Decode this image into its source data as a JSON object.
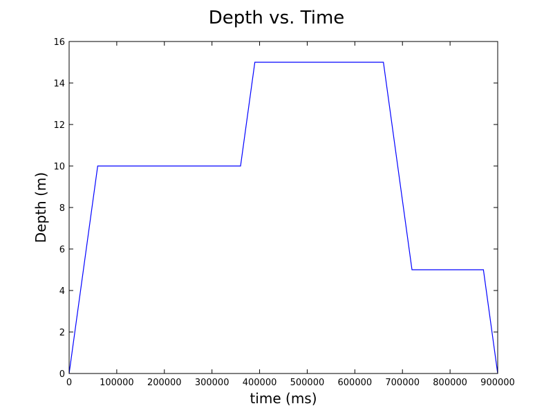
{
  "chart_data": {
    "type": "line",
    "title": "Depth vs. Time",
    "xlabel": "time (ms)",
    "ylabel": "Depth (m)",
    "xlim": [
      0,
      900000
    ],
    "ylim": [
      0,
      16
    ],
    "x_ticks": [
      0,
      100000,
      200000,
      300000,
      400000,
      500000,
      600000,
      700000,
      800000,
      900000
    ],
    "y_ticks": [
      0,
      2,
      4,
      6,
      8,
      10,
      12,
      14,
      16
    ],
    "grid": false,
    "legend": "none",
    "series": [
      {
        "color": "#0000ff",
        "x": [
          0,
          60000,
          360000,
          390000,
          660000,
          720000,
          870000,
          900000
        ],
        "y": [
          0,
          10,
          10,
          15,
          15,
          5,
          5,
          0
        ]
      }
    ]
  }
}
